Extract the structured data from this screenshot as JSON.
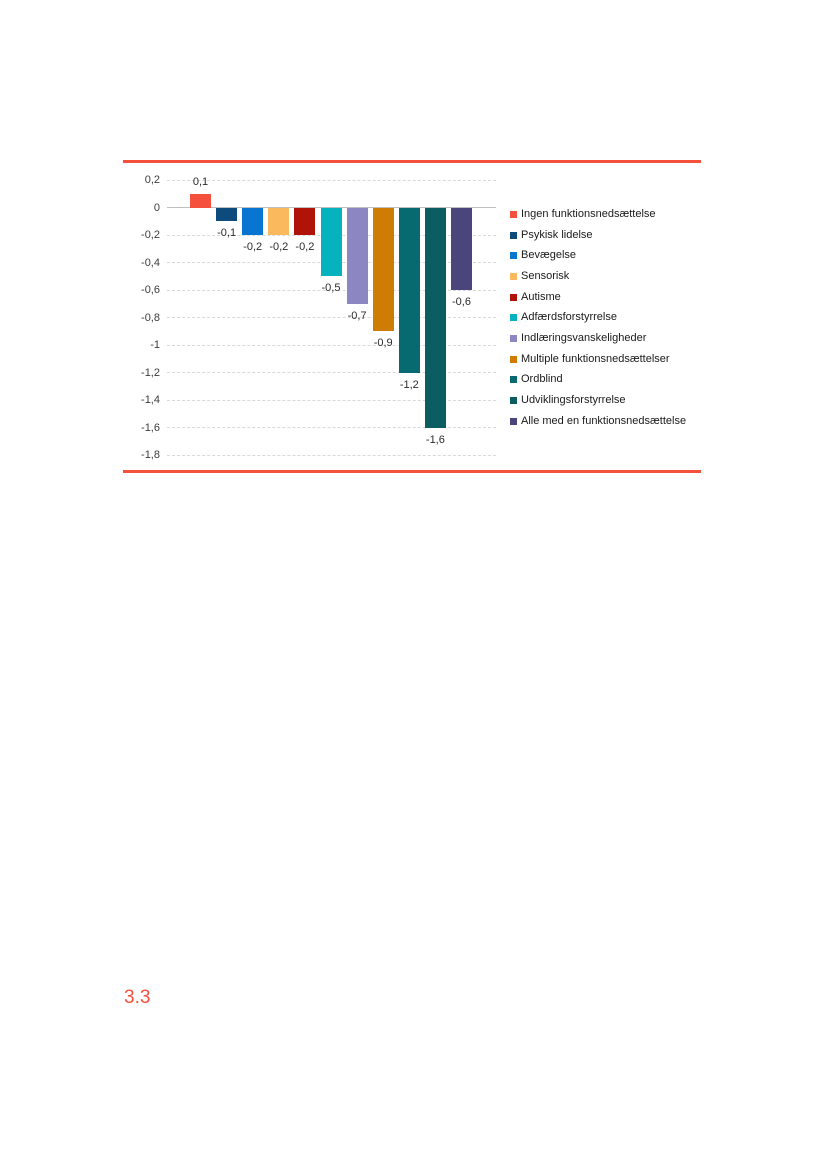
{
  "page": {
    "section_label": "3.3",
    "accent_color": "#F4503C"
  },
  "chart_data": {
    "type": "bar",
    "title": "",
    "xlabel": "",
    "ylabel": "",
    "categories": [
      "Ingen funktionsnedsættelse",
      "Psykisk lidelse",
      "Bevægelse",
      "Sensorisk",
      "Autisme",
      "Adfærdsforstyrrelse",
      "Indlæringsvanskeligheder",
      "Multiple funktionsnedsættelser",
      "Ordblind",
      "Udviklingsforstyrrelse",
      "Alle med en funktionsnedsættelse"
    ],
    "values": [
      0.1,
      -0.1,
      -0.2,
      -0.2,
      -0.2,
      -0.5,
      -0.7,
      -0.9,
      -1.2,
      -1.6,
      -0.6
    ],
    "value_labels": [
      "0,1",
      "-0,1",
      "-0,2",
      "-0,2",
      "-0,2",
      "-0,5",
      "-0,7",
      "-0,9",
      "-1,2",
      "-1,6",
      "-0,6"
    ],
    "colors": [
      "#F5503D",
      "#0D4B7D",
      "#0875D1",
      "#FBB95E",
      "#B01308",
      "#06B2BD",
      "#8C86C3",
      "#CE7C04",
      "#066A70",
      "#0B5D62",
      "#4A467B"
    ],
    "ylim": [
      -1.8,
      0.2
    ],
    "y_axis": {
      "max": 0.2,
      "min": -1.8,
      "step": 0.2,
      "tick_labels": [
        "0,2",
        "0",
        "-0,2",
        "-0,4",
        "-0,6",
        "-0,8",
        "-1",
        "-1,2",
        "-1,4",
        "-1,6",
        "-1,8"
      ]
    },
    "grid": true,
    "legend_position": "right",
    "data_label_position": "outside-end"
  }
}
